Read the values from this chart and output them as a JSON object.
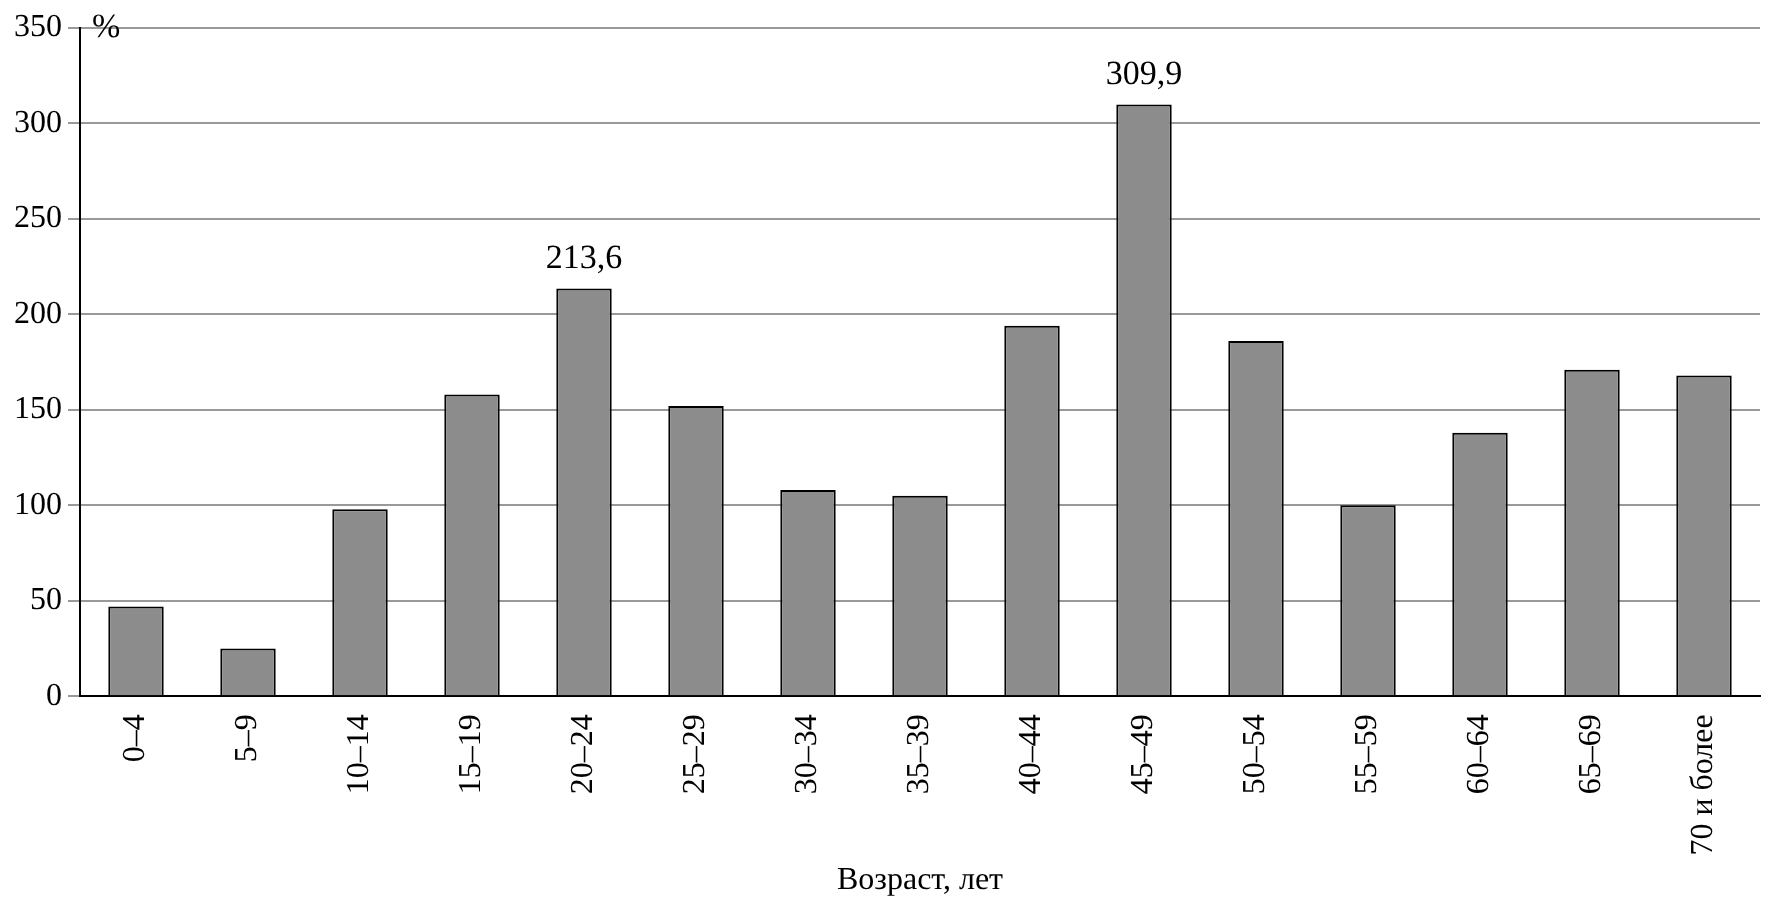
{
  "chart_data": {
    "type": "bar",
    "xlabel": "Возраст, лет",
    "ylabel": "%",
    "categories": [
      "0–4",
      "5–9",
      "10–14",
      "15–19",
      "20–24",
      "25–29",
      "30–34",
      "35–39",
      "40–44",
      "45–49",
      "50–54",
      "55–59",
      "60–64",
      "65–69",
      "70 и более"
    ],
    "values": [
      47,
      25,
      98,
      158,
      213.6,
      152,
      108,
      105,
      194,
      309.9,
      186,
      100,
      138,
      171,
      168
    ],
    "value_labels": [
      null,
      null,
      null,
      null,
      "213,6",
      null,
      null,
      null,
      null,
      "309,9",
      null,
      null,
      null,
      null,
      null
    ],
    "color": "#8c8c8c",
    "ylim": [
      0,
      350
    ],
    "yticks": [
      0,
      50,
      100,
      150,
      200,
      250,
      300,
      350
    ],
    "grid": "y"
  }
}
